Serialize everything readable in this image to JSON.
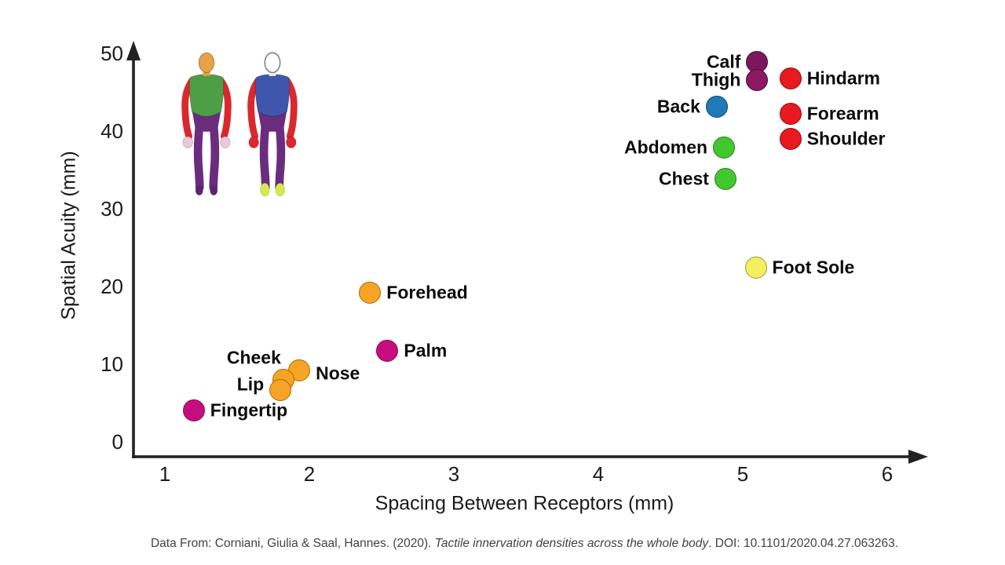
{
  "chart_data": {
    "type": "scatter",
    "xlabel": "Spacing Between Receptors (mm)",
    "ylabel": "Spatial Acuity (mm)",
    "xlim": [
      0.8,
      6.3
    ],
    "ylim": [
      0,
      52
    ],
    "x_ticks": [
      1,
      2,
      3,
      4,
      5,
      6
    ],
    "y_ticks": [
      0,
      10,
      20,
      30,
      40,
      50
    ],
    "grid": false,
    "legend": "none",
    "points": [
      {
        "label": "Calf",
        "x": 5.1,
        "y": 48.9,
        "fill": "#7A175E",
        "stroke": "#4B0D3A",
        "label_side": "left"
      },
      {
        "label": "Thigh",
        "x": 5.1,
        "y": 46.6,
        "fill": "#8C1A63",
        "stroke": "#4B0D3A",
        "label_side": "left"
      },
      {
        "label": "Hindarm",
        "x": 5.33,
        "y": 46.8,
        "fill": "#E8191F",
        "stroke": "#8F0D11",
        "label_side": "right"
      },
      {
        "label": "Back",
        "x": 4.82,
        "y": 43.1,
        "fill": "#1F7AB8",
        "stroke": "#10456E",
        "label_side": "left"
      },
      {
        "label": "Forearm",
        "x": 5.33,
        "y": 42.2,
        "fill": "#E8191F",
        "stroke": "#8F0D11",
        "label_side": "right"
      },
      {
        "label": "Shoulder",
        "x": 5.33,
        "y": 39.0,
        "fill": "#E8191F",
        "stroke": "#8F0D11",
        "label_side": "right"
      },
      {
        "label": "Abdomen",
        "x": 4.87,
        "y": 37.9,
        "fill": "#41C82F",
        "stroke": "#268317",
        "label_side": "left"
      },
      {
        "label": "Chest",
        "x": 4.88,
        "y": 33.8,
        "fill": "#41C82F",
        "stroke": "#268317",
        "label_side": "left"
      },
      {
        "label": "Foot Sole",
        "x": 5.09,
        "y": 22.4,
        "fill": "#F2F05F",
        "stroke": "#9B992F",
        "label_side": "right"
      },
      {
        "label": "Forehead",
        "x": 2.42,
        "y": 19.2,
        "fill": "#F5A425",
        "stroke": "#A96E07",
        "label_side": "right"
      },
      {
        "label": "Palm",
        "x": 2.54,
        "y": 11.7,
        "fill": "#C70C80",
        "stroke": "#87094F",
        "label_side": "right"
      },
      {
        "label": "Nose",
        "x": 1.93,
        "y": 9.2,
        "fill": "#F5A425",
        "stroke": "#A96E07",
        "label_side": "right",
        "label_dy": 4
      },
      {
        "label": "Cheek",
        "x": 1.82,
        "y": 8.0,
        "fill": "#F5A425",
        "stroke": "#A96E07",
        "label_side": "left",
        "label_dx": 18,
        "label_dy": -28
      },
      {
        "label": "Lip",
        "x": 1.8,
        "y": 6.7,
        "fill": "#F5A425",
        "stroke": "#A96E07",
        "label_side": "left",
        "label_dy": -7
      },
      {
        "label": "Fingertip",
        "x": 1.2,
        "y": 4.0,
        "fill": "#C70C80",
        "stroke": "#87094F",
        "label_side": "right"
      }
    ]
  },
  "body_map": {
    "front": {
      "head": "#E9A145",
      "torso": "#4E9E46",
      "arms": "#D9292F",
      "hands": "#E8C9D8",
      "legs": "#6B2C7E",
      "feet": "#5E2470"
    },
    "back": {
      "head": "#FFFFFF",
      "torso": "#3E56AC",
      "arms": "#D9292F",
      "hands": "#D9292F",
      "legs": "#6B2C7E",
      "feet": "#D6E94C"
    }
  },
  "citation": {
    "prefix": "Data From: Corniani, Giulia & Saal, Hannes. (2020). ",
    "italic": "Tactile innervation densities across the whole body",
    "suffix": ". DOI: 10.1101/2020.04.27.063263."
  }
}
